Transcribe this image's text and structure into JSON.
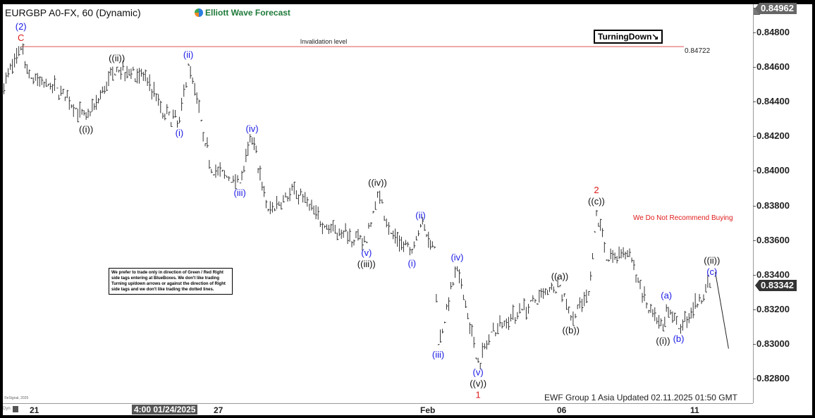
{
  "header": {
    "title": "EURGBP A0-FX, 60 (Dynamic)",
    "logo_text": "Elliott Wave Forecast"
  },
  "annotations": {
    "turning": "TurningDown↘",
    "disclaimer": "We prefer to trade only in direction of Green / Red Right side tags entering at BlueBoxes. We don't like trading Turning up/down arrows or against the direction of Right side tags and we don't like trading the dotted lines.",
    "no_recommend": "We Do Not Recommend Buying",
    "footer": "EWF Group 1 Asia  Updated 02.11.2025 01:50 GMT",
    "copyright": "©eSignal, 2025",
    "dyn": "Dyn"
  },
  "colors": {
    "blue": "#1a1ae6",
    "red": "#e01b1b",
    "black": "#111111",
    "invalidation": "#e05555",
    "bars": "#333333"
  },
  "chart_data": {
    "type": "ohlc-bar",
    "symbol": "EURGBP A0-FX",
    "interval": "60",
    "ylim": [
      0.827,
      0.85
    ],
    "yticks": [
      "0.82800",
      "0.83000",
      "0.83200",
      "0.83400",
      "0.83600",
      "0.83800",
      "0.84000",
      "0.84200",
      "0.84400",
      "0.84600",
      "0.84800"
    ],
    "top_price_tag": "0.84962",
    "last_price": "0.83342",
    "xticks": [
      {
        "label": "21",
        "date": "2025-01-21 00:00"
      },
      {
        "label": "27",
        "date": "2025-01-27 00:00"
      },
      {
        "label": "Feb",
        "date": "2025-02-03 00:00"
      },
      {
        "label": "06",
        "date": "2025-02-06 00:00"
      },
      {
        "label": "11",
        "date": "2025-02-11 00:00"
      }
    ],
    "crosshair_label": "4:00 01/24/2025",
    "invalidation": {
      "label": "Invalidation level",
      "price": 0.84722,
      "price_label": "0.84722"
    },
    "swing_path": [
      [
        "2025-01-20 00:00",
        0.84462
      ],
      [
        "2025-01-20 15:00",
        0.84722
      ],
      [
        "2025-01-20 23:00",
        0.84544
      ],
      [
        "2025-01-21 19:00",
        0.84483
      ],
      [
        "2025-01-22 18:00",
        0.84299
      ],
      [
        "2025-01-23 18:00",
        0.84605
      ],
      [
        "2025-01-24 18:00",
        0.84544
      ],
      [
        "2025-01-25 06:00",
        0.8434
      ],
      [
        "2025-01-25 19:00",
        0.84279
      ],
      [
        "2025-01-26 02:00",
        0.84625
      ],
      [
        "2025-01-26 12:00",
        0.84299
      ],
      [
        "2025-01-26 20:00",
        0.84015
      ],
      [
        "2025-01-27 19:00",
        0.83933
      ],
      [
        "2025-01-28 05:00",
        0.84198
      ],
      [
        "2025-01-28 18:00",
        0.8377
      ],
      [
        "2025-01-29 17:00",
        0.83892
      ],
      [
        "2025-01-30 16:00",
        0.83689
      ],
      [
        "2025-02-01 02:00",
        0.83587
      ],
      [
        "2025-02-01 11:00",
        0.83885
      ],
      [
        "2025-02-01 22:00",
        0.83648
      ],
      [
        "2025-02-02 15:00",
        0.83526
      ],
      [
        "2025-02-02 22:00",
        0.83697
      ],
      [
        "2025-02-03 06:00",
        0.83567
      ],
      [
        "2025-02-03 08:00",
        0.82997
      ],
      [
        "2025-02-03 18:00",
        0.83453
      ],
      [
        "2025-02-04 05:00",
        0.82895
      ],
      [
        "2025-02-04 13:00",
        0.83078
      ],
      [
        "2025-02-05 04:00",
        0.832
      ],
      [
        "2025-02-05 11:00",
        0.83241
      ],
      [
        "2025-02-06 00:00",
        0.83343
      ],
      [
        "2025-02-06 10:00",
        0.83139
      ],
      [
        "2025-02-07 02:00",
        0.83282
      ],
      [
        "2025-02-07 09:00",
        0.83778
      ],
      [
        "2025-02-07 18:00",
        0.83485
      ],
      [
        "2025-02-08 13:00",
        0.83546
      ],
      [
        "2025-02-09 08:00",
        0.832
      ],
      [
        "2025-02-09 21:00",
        0.83078
      ],
      [
        "2025-02-10 00:00",
        0.83233
      ],
      [
        "2025-02-10 11:00",
        0.8309
      ],
      [
        "2025-02-11 17:00",
        0.83371
      ]
    ],
    "projection": [
      [
        "2025-02-11 20:00",
        0.8342
      ],
      [
        "2025-02-12 08:00",
        0.82977
      ]
    ],
    "wave_labels": [
      {
        "date": "2025-01-20 15:00",
        "side": "above",
        "lines": [
          [
            "(2)",
            "blue"
          ],
          [
            "C",
            "red"
          ]
        ]
      },
      {
        "date": "2025-01-22 18:00",
        "side": "below",
        "lines": [
          [
            "((i))",
            "black"
          ]
        ]
      },
      {
        "date": "2025-01-23 18:00",
        "side": "above",
        "lines": [
          [
            "((ii))",
            "black"
          ]
        ]
      },
      {
        "date": "2025-01-25 19:00",
        "side": "below",
        "lines": [
          [
            "(i)",
            "blue"
          ]
        ]
      },
      {
        "date": "2025-01-26 02:00",
        "side": "above",
        "lines": [
          [
            "(ii)",
            "blue"
          ]
        ]
      },
      {
        "date": "2025-01-27 19:00",
        "side": "below",
        "lines": [
          [
            "(iii)",
            "blue"
          ]
        ]
      },
      {
        "date": "2025-01-28 05:00",
        "side": "above",
        "lines": [
          [
            "(iv)",
            "blue"
          ]
        ]
      },
      {
        "date": "2025-02-01 02:00",
        "side": "below",
        "lines": [
          [
            "(v)",
            "blue"
          ],
          [
            "((iii))",
            "black"
          ]
        ]
      },
      {
        "date": "2025-02-01 11:00",
        "side": "above",
        "lines": [
          [
            "((iv))",
            "black"
          ]
        ]
      },
      {
        "date": "2025-02-02 15:00",
        "side": "below",
        "lines": [
          [
            "(i)",
            "blue"
          ]
        ]
      },
      {
        "date": "2025-02-02 22:00",
        "side": "above",
        "lines": [
          [
            "(ii)",
            "blue"
          ]
        ]
      },
      {
        "date": "2025-02-03 08:00",
        "side": "below",
        "lines": [
          [
            "(iii)",
            "blue"
          ]
        ]
      },
      {
        "date": "2025-02-03 18:00",
        "side": "above",
        "lines": [
          [
            "(iv)",
            "blue"
          ]
        ]
      },
      {
        "date": "2025-02-04 05:00",
        "side": "below",
        "lines": [
          [
            "(v)",
            "blue"
          ],
          [
            "((v))",
            "black"
          ],
          [
            "1",
            "red"
          ]
        ]
      },
      {
        "date": "2025-02-06 00:00",
        "side": "above",
        "lines": [
          [
            "((a))",
            "black"
          ]
        ]
      },
      {
        "date": "2025-02-06 10:00",
        "side": "below",
        "lines": [
          [
            "((b))",
            "black"
          ]
        ]
      },
      {
        "date": "2025-02-07 09:00",
        "side": "above",
        "lines": [
          [
            "2",
            "red"
          ],
          [
            "((c))",
            "black"
          ]
        ]
      },
      {
        "date": "2025-02-09 21:00",
        "side": "below",
        "lines": [
          [
            "((i))",
            "black"
          ]
        ]
      },
      {
        "date": "2025-02-10 00:00",
        "side": "above",
        "lines": [
          [
            "(a)",
            "blue"
          ]
        ]
      },
      {
        "date": "2025-02-10 11:00",
        "side": "below",
        "lines": [
          [
            "(b)",
            "blue"
          ]
        ]
      },
      {
        "date": "2025-02-11 17:00",
        "side": "above",
        "lines": [
          [
            "((ii))",
            "black"
          ],
          [
            "(c)",
            "blue"
          ]
        ]
      }
    ]
  }
}
